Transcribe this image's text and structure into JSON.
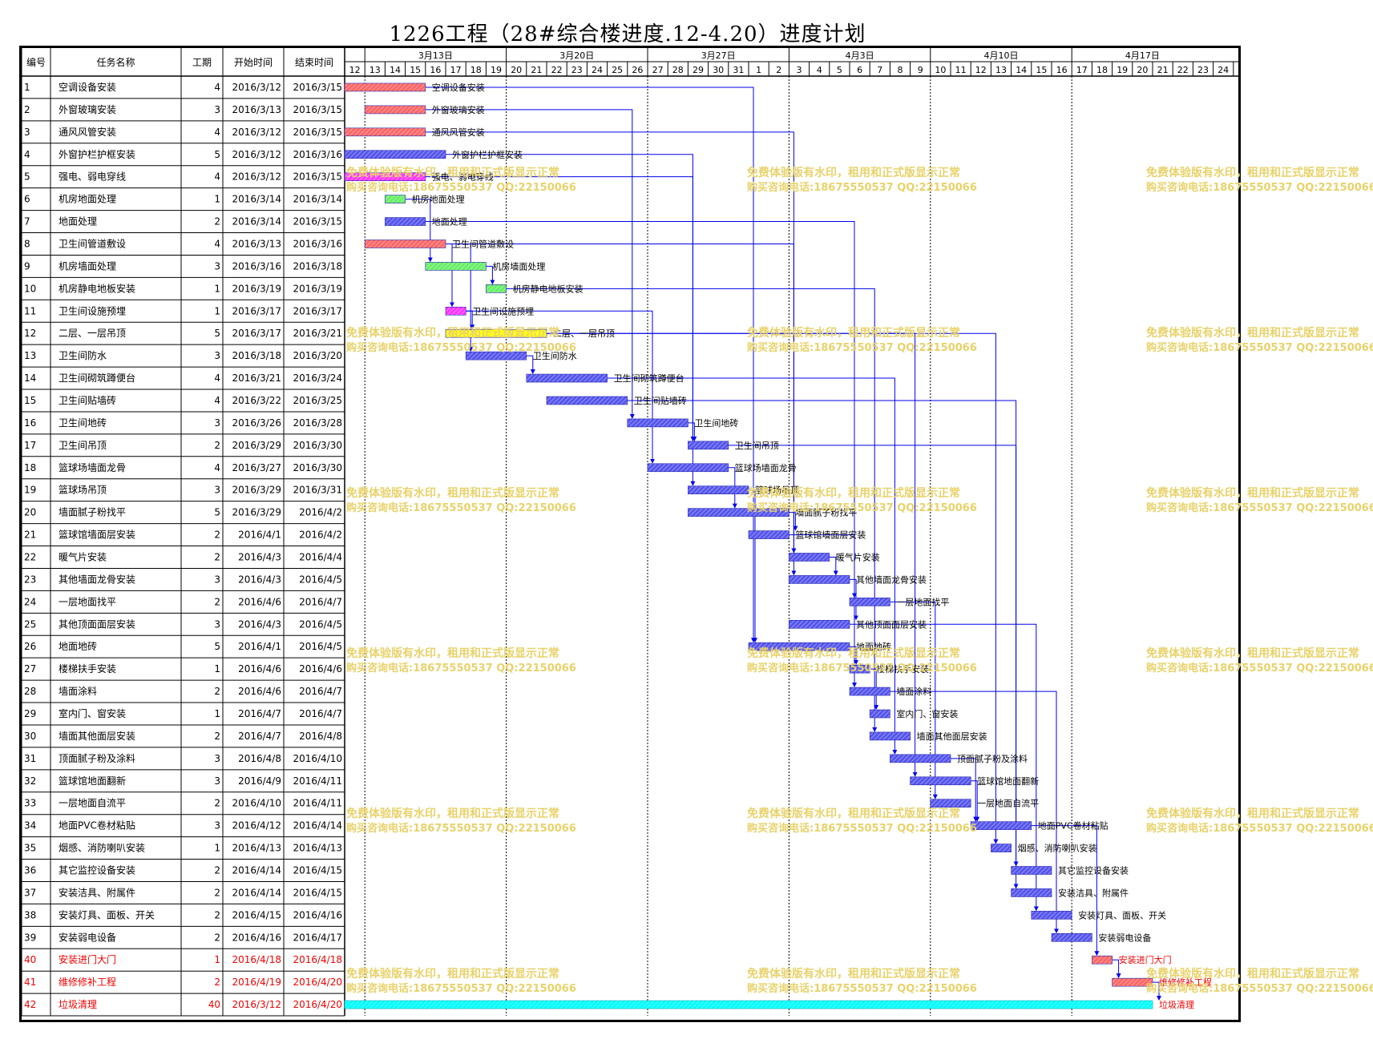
{
  "title": "1226工程（28#综合楼进度.12-4.20）进度计划",
  "headers": {
    "id": "编号",
    "name": "任务名称",
    "duration": "工期",
    "start": "开始时间",
    "end": "结束时间"
  },
  "week_labels": [
    "3月13日",
    "3月20日",
    "3月27日",
    "4月3日",
    "4月10日",
    "4月17日"
  ],
  "day_labels": [
    "12",
    "13",
    "14",
    "15",
    "16",
    "17",
    "18",
    "19",
    "20",
    "21",
    "22",
    "23",
    "24",
    "25",
    "26",
    "27",
    "28",
    "29",
    "30",
    "31",
    "1",
    "2",
    "3",
    "4",
    "5",
    "6",
    "7",
    "8",
    "9",
    "10",
    "11",
    "12",
    "13",
    "14",
    "15",
    "16",
    "17",
    "18",
    "19",
    "20",
    "21",
    "22",
    "23",
    "24"
  ],
  "watermark": {
    "line1": "免费体验版有水印，租用和正式版显示正常",
    "line2": "购买咨询电话:18675550537 QQ:22150066"
  },
  "colors": {
    "red": "#ff6666",
    "blue": "#5555ee",
    "green": "#66ee66",
    "magenta": "#ff33ff",
    "yellow": "#ffff00",
    "cyan": "#00ffff",
    "link": "#0000ee",
    "watermark": "#e8d26a",
    "critical_text": "#ee0000"
  },
  "chart_data": {
    "type": "gantt",
    "tasks": [
      {
        "id": "1",
        "name": "空调设备安装",
        "duration": "4",
        "start": "2016/3/12",
        "end": "2016/3/15",
        "color": "red"
      },
      {
        "id": "2",
        "name": "外窗玻璃安装",
        "duration": "3",
        "start": "2016/3/13",
        "end": "2016/3/15",
        "color": "red"
      },
      {
        "id": "3",
        "name": "通风风管安装",
        "duration": "4",
        "start": "2016/3/12",
        "end": "2016/3/15",
        "color": "red"
      },
      {
        "id": "4",
        "name": "外窗护栏护框安装",
        "duration": "5",
        "start": "2016/3/12",
        "end": "2016/3/16",
        "color": "blue"
      },
      {
        "id": "5",
        "name": "强电、弱电穿线",
        "duration": "4",
        "start": "2016/3/12",
        "end": "2016/3/15",
        "color": "magenta"
      },
      {
        "id": "6",
        "name": "机房地面处理",
        "duration": "1",
        "start": "2016/3/14",
        "end": "2016/3/14",
        "color": "green"
      },
      {
        "id": "7",
        "name": "地面处理",
        "duration": "2",
        "start": "2016/3/14",
        "end": "2016/3/15",
        "color": "blue"
      },
      {
        "id": "8",
        "name": "卫生间管道敷设",
        "duration": "4",
        "start": "2016/3/13",
        "end": "2016/3/16",
        "color": "red"
      },
      {
        "id": "9",
        "name": "机房墙面处理",
        "duration": "3",
        "start": "2016/3/16",
        "end": "2016/3/18",
        "color": "green"
      },
      {
        "id": "10",
        "name": "机房静电地板安装",
        "duration": "1",
        "start": "2016/3/19",
        "end": "2016/3/19",
        "color": "green"
      },
      {
        "id": "11",
        "name": "卫生间设施预埋",
        "duration": "1",
        "start": "2016/3/17",
        "end": "2016/3/17",
        "color": "magenta"
      },
      {
        "id": "12",
        "name": "二层、一层吊顶",
        "duration": "5",
        "start": "2016/3/17",
        "end": "2016/3/21",
        "color": "yellow"
      },
      {
        "id": "13",
        "name": "卫生间防水",
        "duration": "3",
        "start": "2016/3/18",
        "end": "2016/3/20",
        "color": "blue"
      },
      {
        "id": "14",
        "name": "卫生间砌筑蹲便台",
        "duration": "4",
        "start": "2016/3/21",
        "end": "2016/3/24",
        "color": "blue"
      },
      {
        "id": "15",
        "name": "卫生间贴墙砖",
        "duration": "4",
        "start": "2016/3/22",
        "end": "2016/3/25",
        "color": "blue"
      },
      {
        "id": "16",
        "name": "卫生间地砖",
        "duration": "3",
        "start": "2016/3/26",
        "end": "2016/3/28",
        "color": "blue"
      },
      {
        "id": "17",
        "name": "卫生间吊顶",
        "duration": "2",
        "start": "2016/3/29",
        "end": "2016/3/30",
        "color": "blue"
      },
      {
        "id": "18",
        "name": "篮球场墙面龙骨",
        "duration": "4",
        "start": "2016/3/27",
        "end": "2016/3/30",
        "color": "blue"
      },
      {
        "id": "19",
        "name": "篮球场吊顶",
        "duration": "3",
        "start": "2016/3/29",
        "end": "2016/3/31",
        "color": "blue"
      },
      {
        "id": "20",
        "name": "墙面腻子粉找平",
        "duration": "5",
        "start": "2016/3/29",
        "end": "2016/4/2",
        "color": "blue"
      },
      {
        "id": "21",
        "name": "篮球馆墙面层安装",
        "duration": "2",
        "start": "2016/4/1",
        "end": "2016/4/2",
        "color": "blue"
      },
      {
        "id": "22",
        "name": "暖气片安装",
        "duration": "2",
        "start": "2016/4/3",
        "end": "2016/4/4",
        "color": "blue"
      },
      {
        "id": "23",
        "name": "其他墙面龙骨安装",
        "duration": "3",
        "start": "2016/4/3",
        "end": "2016/4/5",
        "color": "blue"
      },
      {
        "id": "24",
        "name": "一层地面找平",
        "duration": "2",
        "start": "2016/4/6",
        "end": "2016/4/7",
        "color": "blue"
      },
      {
        "id": "25",
        "name": "其他顶面面层安装",
        "duration": "3",
        "start": "2016/4/3",
        "end": "2016/4/5",
        "color": "blue"
      },
      {
        "id": "26",
        "name": "地面地砖",
        "duration": "5",
        "start": "2016/4/1",
        "end": "2016/4/5",
        "color": "blue"
      },
      {
        "id": "27",
        "name": "楼梯扶手安装",
        "duration": "1",
        "start": "2016/4/6",
        "end": "2016/4/6",
        "color": "blue"
      },
      {
        "id": "28",
        "name": "墙面涂料",
        "duration": "2",
        "start": "2016/4/6",
        "end": "2016/4/7",
        "color": "blue"
      },
      {
        "id": "29",
        "name": "室内门、窗安装",
        "duration": "1",
        "start": "2016/4/7",
        "end": "2016/4/7",
        "color": "blue"
      },
      {
        "id": "30",
        "name": "墙面其他面层安装",
        "duration": "2",
        "start": "2016/4/7",
        "end": "2016/4/8",
        "color": "blue"
      },
      {
        "id": "31",
        "name": "顶面腻子粉及涂料",
        "duration": "3",
        "start": "2016/4/8",
        "end": "2016/4/10",
        "color": "blue"
      },
      {
        "id": "32",
        "name": "篮球馆地面翻新",
        "duration": "3",
        "start": "2016/4/9",
        "end": "2016/4/11",
        "color": "blue"
      },
      {
        "id": "33",
        "name": "一层地面自流平",
        "duration": "2",
        "start": "2016/4/10",
        "end": "2016/4/11",
        "color": "blue"
      },
      {
        "id": "34",
        "name": "地面PVC卷材粘贴",
        "duration": "3",
        "start": "2016/4/12",
        "end": "2016/4/14",
        "color": "blue"
      },
      {
        "id": "35",
        "name": "烟感、消防喇叭安装",
        "duration": "1",
        "start": "2016/4/13",
        "end": "2016/4/13",
        "color": "blue"
      },
      {
        "id": "36",
        "name": "其它监控设备安装",
        "duration": "2",
        "start": "2016/4/14",
        "end": "2016/4/15",
        "color": "blue"
      },
      {
        "id": "37",
        "name": "安装洁具、附属件",
        "duration": "2",
        "start": "2016/4/14",
        "end": "2016/4/15",
        "color": "blue"
      },
      {
        "id": "38",
        "name": "安装灯具、面板、开关",
        "duration": "2",
        "start": "2016/4/15",
        "end": "2016/4/16",
        "color": "blue"
      },
      {
        "id": "39",
        "name": "安装弱电设备",
        "duration": "2",
        "start": "2016/4/16",
        "end": "2016/4/17",
        "color": "blue"
      },
      {
        "id": "40",
        "name": "安装进门大门",
        "duration": "1",
        "start": "2016/4/18",
        "end": "2016/4/18",
        "color": "red",
        "critical": true
      },
      {
        "id": "41",
        "name": "维修修补工程",
        "duration": "2",
        "start": "2016/4/19",
        "end": "2016/4/20",
        "color": "red",
        "critical": true
      },
      {
        "id": "42",
        "name": "垃圾清理",
        "duration": "40",
        "start": "2016/3/12",
        "end": "2016/4/20",
        "color": "cyan",
        "critical": true
      }
    ],
    "links": [
      [
        1,
        26
      ],
      [
        2,
        16
      ],
      [
        3,
        22
      ],
      [
        4,
        19
      ],
      [
        5,
        17
      ],
      [
        6,
        9
      ],
      [
        7,
        24
      ],
      [
        8,
        11
      ],
      [
        8,
        13
      ],
      [
        8,
        23
      ],
      [
        9,
        10
      ],
      [
        10,
        30
      ],
      [
        11,
        12
      ],
      [
        11,
        18
      ],
      [
        12,
        32
      ],
      [
        12,
        35
      ],
      [
        13,
        14
      ],
      [
        14,
        31
      ],
      [
        15,
        37
      ],
      [
        16,
        17
      ],
      [
        17,
        36
      ],
      [
        18,
        20
      ],
      [
        19,
        26
      ],
      [
        20,
        21
      ],
      [
        21,
        28
      ],
      [
        22,
        23
      ],
      [
        23,
        25
      ],
      [
        24,
        33
      ],
      [
        25,
        38
      ],
      [
        26,
        27
      ],
      [
        27,
        29
      ],
      [
        28,
        39
      ],
      [
        31,
        34
      ],
      [
        32,
        34
      ],
      [
        34,
        40
      ],
      [
        40,
        41
      ],
      [
        41,
        42
      ]
    ]
  }
}
